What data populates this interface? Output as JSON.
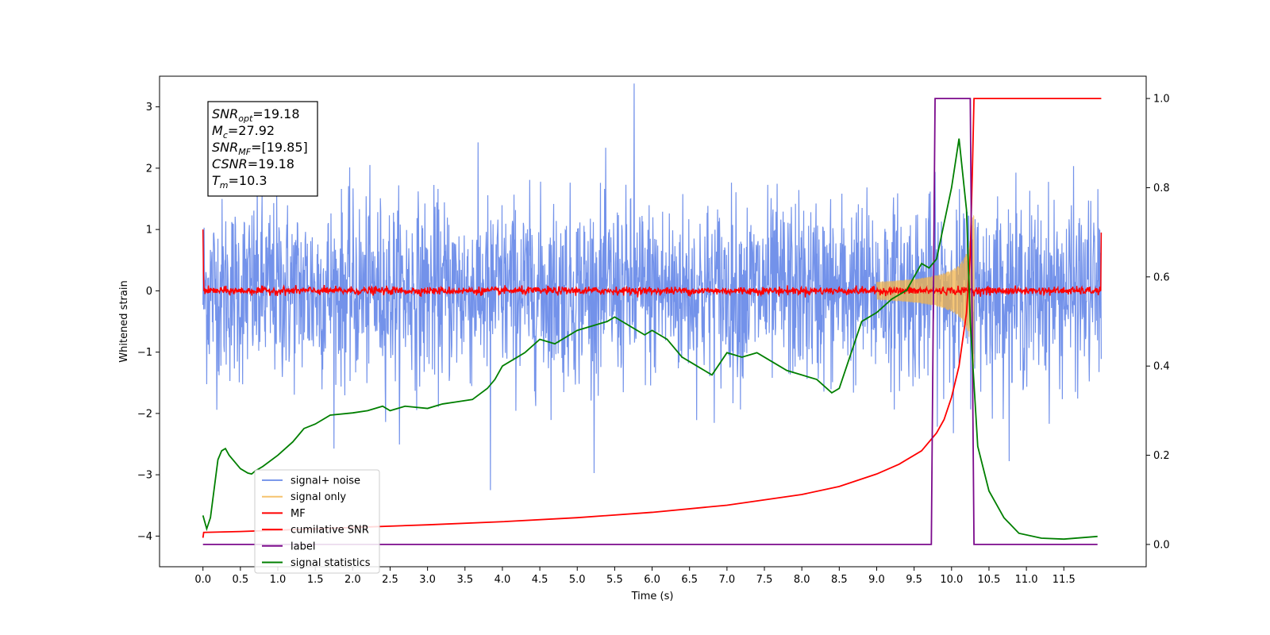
{
  "colors": {
    "noise": "#5b7fe6",
    "signal_only": "#f2b34a",
    "mf": "#ff0000",
    "csnr": "#ff0000",
    "label": "#7b0a8c",
    "stats": "#007f00"
  },
  "annotation": {
    "lines": [
      {
        "var": "SNR",
        "sub": "opt",
        "val": "=19.18"
      },
      {
        "var": "M",
        "sub": "c",
        "val": "=27.92"
      },
      {
        "var": "SNR",
        "sub": "MF",
        "val": "=[19.85]"
      },
      {
        "var": "CSNR",
        "sub": "",
        "val": "=19.18"
      },
      {
        "var": "T",
        "sub": "m",
        "val": "=10.3"
      }
    ]
  },
  "chart_data": {
    "type": "line",
    "xlabel": "Time (s)",
    "ylabel": "Whitened strain",
    "xlim": [
      -0.58,
      12.6
    ],
    "ylim_left": [
      -4.5,
      3.5
    ],
    "ylim_right": [
      -0.05,
      1.05
    ],
    "x_ticks": [
      "0.0",
      "0.5",
      "1.0",
      "1.5",
      "2.0",
      "2.5",
      "3.0",
      "3.5",
      "4.0",
      "4.5",
      "5.0",
      "5.5",
      "6.0",
      "6.5",
      "7.0",
      "7.5",
      "8.0",
      "8.5",
      "9.0",
      "9.5",
      "10.0",
      "10.5",
      "11.0",
      "11.5"
    ],
    "y_ticks_left": [
      "3",
      "2",
      "1",
      "0",
      "−1",
      "−2",
      "−3",
      "−4"
    ],
    "y_ticks_right": [
      "1.0",
      "0.8",
      "0.6",
      "0.4",
      "0.2",
      "0.0"
    ],
    "legend": {
      "placement": "lower-left",
      "entries": [
        "signal+ noise",
        "signal only",
        "MF",
        "cumilative SNR",
        "label",
        "signal statistics"
      ]
    },
    "series": [
      {
        "name": "signal+ noise",
        "axis": "left",
        "style": "noise",
        "x_range": [
          0.0,
          12.0
        ],
        "band": [
          -1.7,
          1.7
        ],
        "peak_max": 3.38,
        "peak_min": -3.25
      },
      {
        "name": "signal only",
        "axis": "left",
        "style": "chirp",
        "x_range": [
          9.0,
          10.3
        ],
        "amp_at_merger": 1.0,
        "merger_time": 10.3
      },
      {
        "name": "MF",
        "axis": "left",
        "style": "flat-noise",
        "x_range": [
          0.0,
          12.0
        ],
        "band": [
          -0.07,
          0.07
        ],
        "start_value": 1.0,
        "end_value": 0.95
      },
      {
        "name": "cumilative SNR",
        "axis": "right",
        "x": [
          0.0,
          0.01,
          0.5,
          1.0,
          2.0,
          3.0,
          4.0,
          5.0,
          6.0,
          7.0,
          8.0,
          8.5,
          9.0,
          9.3,
          9.6,
          9.8,
          9.9,
          10.0,
          10.1,
          10.2,
          10.25,
          10.28,
          10.3,
          12.0
        ],
        "y": [
          0.015,
          0.027,
          0.029,
          0.032,
          0.038,
          0.044,
          0.051,
          0.06,
          0.072,
          0.088,
          0.112,
          0.13,
          0.158,
          0.18,
          0.21,
          0.25,
          0.28,
          0.33,
          0.4,
          0.52,
          0.65,
          0.85,
          1.0,
          1.0
        ]
      },
      {
        "name": "label",
        "axis": "right",
        "x": [
          0.0,
          9.73,
          9.78,
          10.25,
          10.3,
          11.95
        ],
        "y": [
          0.0,
          0.0,
          1.0,
          1.0,
          0.0,
          0.0
        ]
      },
      {
        "name": "signal statistics",
        "axis": "right",
        "x": [
          0.0,
          0.05,
          0.1,
          0.2,
          0.25,
          0.3,
          0.35,
          0.4,
          0.5,
          0.6,
          0.65,
          0.7,
          0.8,
          1.0,
          1.2,
          1.35,
          1.5,
          1.6,
          1.7,
          2.0,
          2.2,
          2.4,
          2.5,
          2.7,
          3.0,
          3.2,
          3.4,
          3.6,
          3.8,
          3.9,
          4.0,
          4.3,
          4.5,
          4.7,
          4.9,
          5.0,
          5.2,
          5.4,
          5.5,
          5.7,
          5.9,
          6.0,
          6.2,
          6.4,
          6.6,
          6.8,
          7.0,
          7.2,
          7.4,
          7.6,
          7.8,
          8.0,
          8.2,
          8.4,
          8.5,
          8.6,
          8.8,
          9.0,
          9.2,
          9.4,
          9.5,
          9.6,
          9.7,
          9.8,
          9.9,
          10.0,
          10.1,
          10.2,
          10.25,
          10.35,
          10.5,
          10.7,
          10.9,
          11.2,
          11.5,
          11.95
        ],
        "y": [
          0.065,
          0.035,
          0.06,
          0.19,
          0.21,
          0.215,
          0.2,
          0.19,
          0.17,
          0.16,
          0.158,
          0.165,
          0.175,
          0.2,
          0.23,
          0.26,
          0.27,
          0.28,
          0.29,
          0.295,
          0.3,
          0.31,
          0.3,
          0.31,
          0.305,
          0.315,
          0.32,
          0.325,
          0.35,
          0.37,
          0.4,
          0.43,
          0.46,
          0.45,
          0.47,
          0.48,
          0.49,
          0.5,
          0.51,
          0.49,
          0.47,
          0.48,
          0.46,
          0.42,
          0.4,
          0.38,
          0.43,
          0.42,
          0.43,
          0.41,
          0.39,
          0.38,
          0.37,
          0.34,
          0.35,
          0.4,
          0.5,
          0.52,
          0.55,
          0.57,
          0.6,
          0.63,
          0.62,
          0.64,
          0.72,
          0.8,
          0.91,
          0.75,
          0.5,
          0.22,
          0.12,
          0.06,
          0.025,
          0.014,
          0.012,
          0.018
        ]
      }
    ]
  }
}
